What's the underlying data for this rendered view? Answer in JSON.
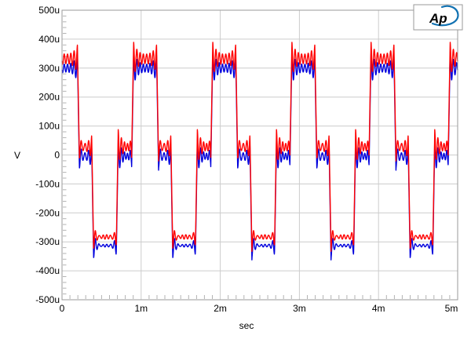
{
  "logo": {
    "text": "Ap",
    "title": "Audio Precision logo",
    "color": "#1272b2",
    "box_border_color": "#9a9a9a"
  },
  "chart_data": {
    "type": "line",
    "title": "",
    "xlabel": "sec",
    "ylabel": "V",
    "xlim_ms": [
      0,
      5
    ],
    "ylim_uV": [
      -500,
      500
    ],
    "x_tick_positions_ms": [
      0,
      1,
      2,
      3,
      4,
      5
    ],
    "x_tick_labels": [
      "0",
      "1m",
      "2m",
      "3m",
      "4m",
      "5m"
    ],
    "y_tick_positions_uV": [
      500,
      400,
      300,
      200,
      100,
      0,
      -100,
      -200,
      -300,
      -400,
      -500
    ],
    "y_tick_labels": [
      "500u",
      "400u",
      "300u",
      "200u",
      "100u",
      "0",
      "-100u",
      "-200u",
      "-300u",
      "-400u",
      "-500u"
    ],
    "x_minor_tick_step_ms": 0.1,
    "y_minor_tick_step_uV": 20,
    "grid": "major-only",
    "legend": "none",
    "colors": {
      "background": "#ffffff",
      "grid": "#cccccc",
      "frame": "#9a9a9a",
      "tick": "#b3b3b3",
      "text": "#000000"
    },
    "waveform": {
      "description": "1 kHz four-level staircase square wave with Gibbs ringing and ~24 kHz ripple; 5 cycles shown over 5 ms; red and blue channel traces nearly overlapping",
      "cycles_shown": 5,
      "period_ms": 1,
      "phases": {
        "fall1": [
          0.195,
          0.22
        ],
        "mid1": [
          0.22,
          0.375
        ],
        "fall2": [
          0.375,
          0.4
        ],
        "low": [
          0.4,
          0.685
        ],
        "rise1": [
          0.685,
          0.71
        ],
        "mid2": [
          0.71,
          0.88
        ],
        "rise2": [
          0.88,
          0.905
        ],
        "high_start": 0.905,
        "high_end": 1.195
      },
      "ring": {
        "freq_per_ms": 24,
        "tau_ms": 0.05,
        "post_overshoot": 0.16,
        "pre_overshoot": 0.12,
        "ripple_phase_rad": 2.0
      },
      "sample_step_ms": 0.002
    },
    "series": [
      {
        "name": "channel-blue",
        "color": "#0000dd",
        "high_uv": 300,
        "mid_uv": -4,
        "low_uv": -313,
        "ripple_uv": 9,
        "width": 1.4
      },
      {
        "name": "channel-red",
        "color": "#ff0000",
        "high_uv": 332,
        "mid_uv": 28,
        "low_uv": -283,
        "ripple_uv": 12,
        "width": 1.4
      }
    ]
  }
}
